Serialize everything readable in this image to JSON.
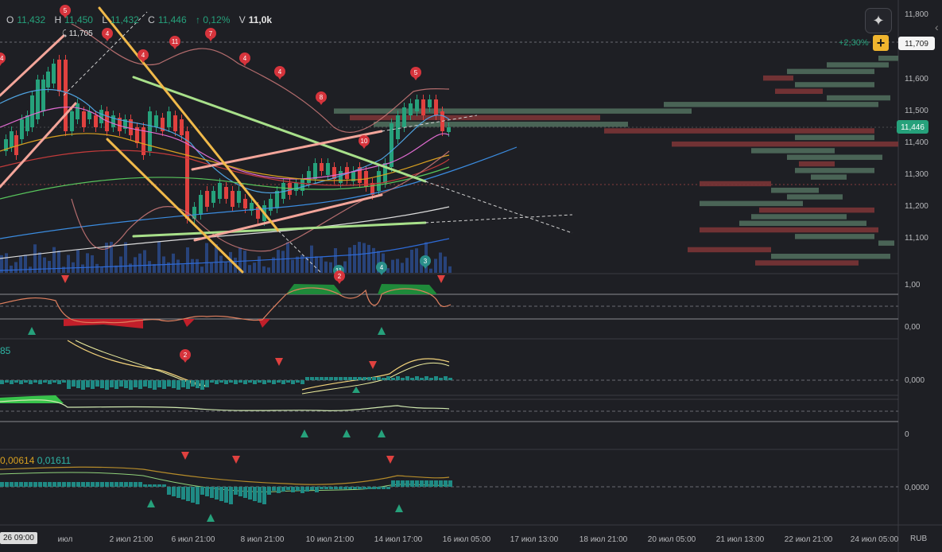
{
  "ohlc": {
    "o_label": "O",
    "o": "11,432",
    "h_label": "H",
    "h": "11,450",
    "l_label": "L",
    "l": "11,432",
    "c_label": "C",
    "c": "11,446",
    "change": "↑ 0,12%",
    "v_label": "V",
    "v": "11,0k"
  },
  "top_marker": "11,705",
  "price_axis": {
    "labels": [
      "11,800",
      "11,700",
      "11,600",
      "11,500",
      "11,400",
      "11,300",
      "11,200",
      "11,100"
    ],
    "current_price": "11,446",
    "upper_price": "11,709",
    "upper_pct": "+2,30%",
    "currency": "RUB"
  },
  "osc1_axis": [
    "1,00",
    "0,00"
  ],
  "osc2_axis": [
    "0,000"
  ],
  "osc2_label": "85",
  "osc3_axis": [
    "0"
  ],
  "osc4_axis": [
    "0,0000"
  ],
  "osc4_values": [
    "0,00614",
    "0,01611"
  ],
  "time_axis": [
    "июл",
    "2 июл 21:00",
    "6 июл 21:00",
    "8 июл 21:00",
    "10 июл 21:00",
    "14 июл 17:00",
    "16 июл 05:00",
    "17 июл 13:00",
    "18 июл 21:00",
    "20 июл 05:00",
    "21 июл 13:00",
    "22 июл 21:00",
    "24 июл 05:00"
  ],
  "start_date": "26 09:00",
  "badges": [
    "5",
    "4",
    "11",
    "7",
    "4",
    "4",
    "4",
    "8",
    "5",
    "10",
    "14",
    "11",
    "4",
    "3",
    "2",
    "2"
  ],
  "icons": {
    "ai": "sparkle-icon",
    "plus": "plus-icon",
    "chevron": "chevron-left-icon"
  },
  "colors": {
    "up": "#26a17b",
    "down": "#e0413f",
    "bg": "#1e1f24",
    "accent": "#f0b52e"
  }
}
